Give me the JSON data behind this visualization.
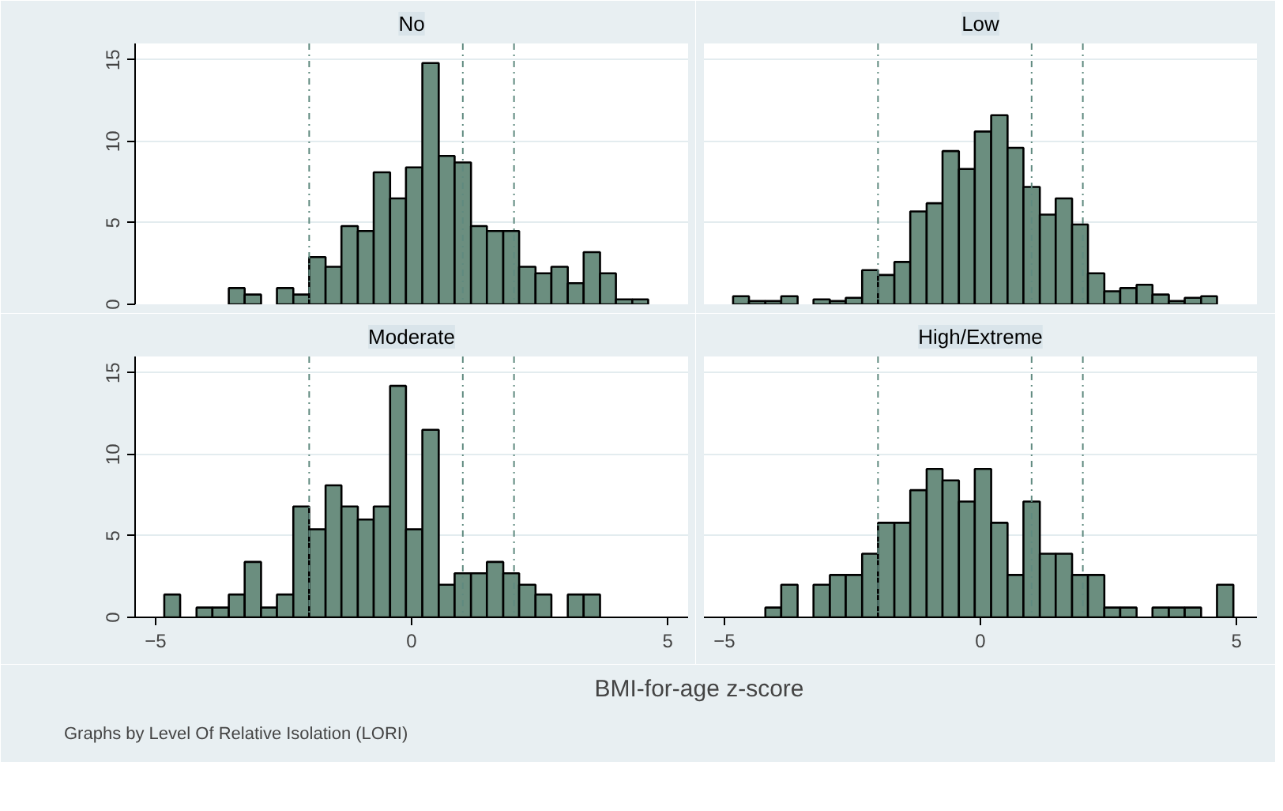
{
  "chart_data": [
    {
      "type": "histogram",
      "title": "No",
      "color": "#6b8e7f",
      "bins": [
        -3.57,
        -3.26,
        -2.94,
        -2.63,
        -2.31,
        -2.0,
        -1.68,
        -1.37,
        -1.05,
        -0.74,
        -0.42,
        -0.11,
        0.21,
        0.53,
        0.84,
        1.16,
        1.47,
        1.79,
        2.1,
        2.42,
        2.73,
        3.05,
        3.36,
        3.68,
        3.99,
        4.31,
        4.62
      ],
      "values": [
        1.0,
        0.6,
        null,
        1.0,
        0.6,
        2.9,
        2.3,
        4.8,
        4.5,
        8.1,
        6.5,
        8.4,
        14.8,
        9.1,
        8.7,
        4.8,
        4.5,
        4.5,
        2.3,
        1.9,
        2.3,
        1.3,
        3.2,
        1.9,
        0.3,
        0.3
      ],
      "xlim": [
        -5.4,
        5.4
      ],
      "ylim": [
        0,
        16
      ],
      "xticks": [
        -5,
        0,
        5
      ],
      "yticks": [
        0,
        5,
        10,
        15
      ],
      "grid": "y",
      "tick_labels": "y",
      "ref_lines": [
        {
          "axis": "x",
          "value": -2,
          "color": "#5f8a7f"
        },
        {
          "axis": "x",
          "value": 1,
          "color": "#5f8a7f"
        },
        {
          "axis": "x",
          "value": 2,
          "color": "#5f8a7f"
        }
      ]
    },
    {
      "type": "histogram",
      "title": "Low",
      "color": "#6b8e7f",
      "bins": [
        -4.83,
        -4.52,
        -4.2,
        -3.89,
        -3.57,
        -3.26,
        -2.94,
        -2.63,
        -2.31,
        -2.0,
        -1.68,
        -1.37,
        -1.05,
        -0.74,
        -0.42,
        -0.11,
        0.21,
        0.53,
        0.84,
        1.16,
        1.47,
        1.79,
        2.1,
        2.42,
        2.73,
        3.05,
        3.36,
        3.68,
        3.99,
        4.31,
        4.62
      ],
      "values": [
        0.5,
        0.2,
        0.2,
        0.5,
        null,
        0.3,
        0.2,
        0.4,
        2.1,
        1.8,
        2.6,
        5.7,
        6.2,
        9.4,
        8.3,
        10.6,
        11.6,
        9.6,
        7.2,
        5.5,
        6.5,
        4.9,
        1.9,
        0.8,
        1.0,
        1.2,
        0.6,
        0.2,
        0.4,
        0.5
      ],
      "xlim": [
        -5.4,
        5.4
      ],
      "ylim": [
        0,
        16
      ],
      "xticks": [
        -5,
        0,
        5
      ],
      "yticks": [
        0,
        5,
        10,
        15
      ],
      "grid": "y",
      "tick_labels": false,
      "ref_lines": [
        {
          "axis": "x",
          "value": -2,
          "color": "#5f8a7f"
        },
        {
          "axis": "x",
          "value": 1,
          "color": "#5f8a7f"
        },
        {
          "axis": "x",
          "value": 2,
          "color": "#5f8a7f"
        }
      ]
    },
    {
      "type": "histogram",
      "title": "Moderate",
      "color": "#6b8e7f",
      "xlabel": "BMI-for-age z-score",
      "bins": [
        -4.83,
        -4.52,
        -4.2,
        -3.89,
        -3.57,
        -3.26,
        -2.94,
        -2.63,
        -2.31,
        -2.0,
        -1.68,
        -1.37,
        -1.05,
        -0.74,
        -0.42,
        -0.11,
        0.21,
        0.53,
        0.84,
        1.16,
        1.47,
        1.79,
        2.1,
        2.42,
        2.73,
        3.05,
        3.36,
        3.68
      ],
      "values": [
        1.4,
        null,
        0.6,
        0.6,
        1.4,
        3.4,
        0.6,
        1.4,
        6.8,
        5.4,
        8.1,
        6.8,
        6.0,
        6.8,
        14.2,
        5.4,
        11.5,
        2.0,
        2.7,
        2.7,
        3.4,
        2.7,
        2.0,
        1.4,
        null,
        1.4,
        1.4
      ],
      "xlim": [
        -5.4,
        5.4
      ],
      "ylim": [
        0,
        16
      ],
      "xticks": [
        -5,
        0,
        5
      ],
      "yticks": [
        0,
        5,
        10,
        15
      ],
      "grid": "y",
      "ref_lines": [
        {
          "axis": "x",
          "value": -2,
          "color": "#5f8a7f"
        },
        {
          "axis": "x",
          "value": 1,
          "color": "#5f8a7f"
        },
        {
          "axis": "x",
          "value": 2,
          "color": "#5f8a7f"
        }
      ]
    },
    {
      "type": "histogram",
      "title": "High/Extreme",
      "color": "#6b8e7f",
      "annotations": [
        "Graphs by Level Of Relative Isolation (LORI)"
      ],
      "bins": [
        -4.2,
        -3.89,
        -3.57,
        -3.26,
        -2.94,
        -2.63,
        -2.31,
        -2.0,
        -1.68,
        -1.37,
        -1.05,
        -0.74,
        -0.42,
        -0.11,
        0.21,
        0.53,
        0.84,
        1.16,
        1.47,
        1.79,
        2.1,
        2.42,
        2.73,
        3.05,
        3.36,
        3.68,
        3.99,
        4.31,
        4.62,
        4.94
      ],
      "values": [
        0.6,
        2.0,
        null,
        2.0,
        2.6,
        2.6,
        3.9,
        5.8,
        5.8,
        7.8,
        9.1,
        8.4,
        7.1,
        9.1,
        5.8,
        2.6,
        7.1,
        3.9,
        3.9,
        2.6,
        2.6,
        0.6,
        0.6,
        null,
        0.6,
        0.6,
        0.6,
        null,
        2.0
      ],
      "xlim": [
        -5.4,
        5.4
      ],
      "ylim": [
        0,
        16
      ],
      "xticks": [
        -5,
        0,
        5
      ],
      "yticks": [
        0,
        5,
        10,
        15
      ],
      "grid": "y",
      "tick_labels": "x",
      "ref_lines": [
        {
          "axis": "x",
          "value": -2,
          "color": "#5f8a7f"
        },
        {
          "axis": "x",
          "value": 1,
          "color": "#5f8a7f"
        },
        {
          "axis": "x",
          "value": 2,
          "color": "#5f8a7f"
        }
      ]
    }
  ]
}
